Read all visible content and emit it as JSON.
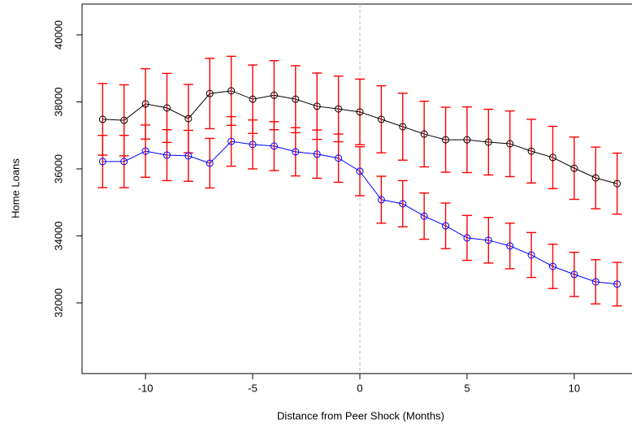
{
  "chart_data": {
    "type": "line",
    "x_label": "Distance from Peer Shock (Months)",
    "y_label": "Home Loans",
    "x": [
      -12,
      -11,
      -10,
      -9,
      -8,
      -7,
      -6,
      -5,
      -4,
      -3,
      -2,
      -1,
      0,
      1,
      2,
      3,
      4,
      5,
      6,
      7,
      8,
      9,
      10,
      11,
      12
    ],
    "series": [
      {
        "color": "#000000",
        "values": [
          37480,
          37450,
          37940,
          37820,
          37500,
          38250,
          38330,
          38080,
          38200,
          38080,
          37870,
          37790,
          37700,
          37480,
          37260,
          37040,
          36870,
          36870,
          36800,
          36750,
          36530,
          36340,
          36020,
          35730,
          35560
        ],
        "errors": [
          1070,
          1060,
          1050,
          1030,
          1020,
          1050,
          1030,
          1020,
          1030,
          1000,
          990,
          980,
          980,
          1000,
          1000,
          980,
          970,
          980,
          980,
          980,
          950,
          930,
          930,
          920,
          910
        ]
      },
      {
        "color": "#0000ff",
        "values": [
          36220,
          36220,
          36530,
          36410,
          36390,
          36170,
          36820,
          36730,
          36680,
          36510,
          36440,
          36320,
          35930,
          35080,
          34960,
          34590,
          34300,
          33940,
          33870,
          33700,
          33430,
          33090,
          32850,
          32630,
          32560
        ],
        "errors": [
          780,
          780,
          780,
          760,
          760,
          740,
          740,
          730,
          730,
          720,
          720,
          720,
          730,
          700,
          690,
          690,
          680,
          670,
          680,
          680,
          670,
          660,
          660,
          660,
          650
        ]
      }
    ],
    "error_color": "#ff0000",
    "xlim": [
      -12.96,
      12.96
    ],
    "xticks": [
      -10,
      -5,
      0,
      5,
      10
    ],
    "ylim": [
      29890,
      40920
    ],
    "yticks": [
      32000,
      34000,
      36000,
      38000,
      40000
    ],
    "vline": 0,
    "vline_color": "#bbbbbb"
  }
}
